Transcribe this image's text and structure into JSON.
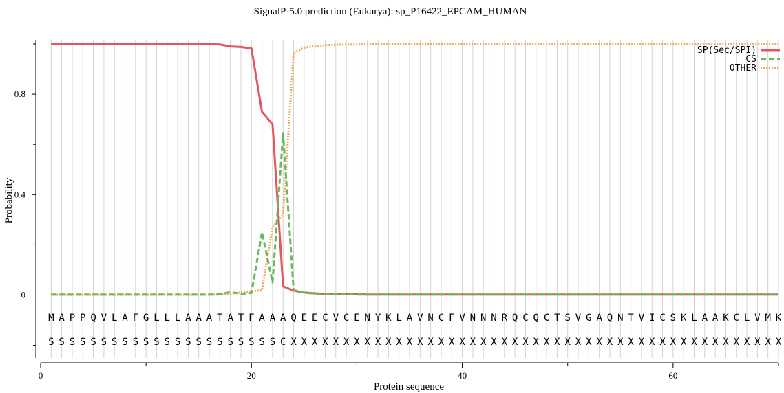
{
  "chart_data": {
    "type": "line",
    "title": "SignalP-5.0 prediction (Eukarya):  sp_P16422_EPCAM_HUMAN",
    "xlabel": "Protein sequence",
    "ylabel": "Probability",
    "xlim": [
      0,
      70
    ],
    "ylim": [
      -0.25,
      1.0
    ],
    "x_ticks": [
      0,
      20,
      40,
      60
    ],
    "x_minor_ticks": [
      10,
      30,
      50,
      70
    ],
    "y_ticks": [
      0,
      0.4,
      0.8
    ],
    "y_tick_labels": [
      "0",
      "0.4",
      "0.8"
    ],
    "y_minor_ticks": [
      -0.2,
      0.2,
      0.6,
      1.0
    ],
    "grid": "vertical lines at each residue",
    "legend_position": "top-right",
    "sequence": [
      "M",
      "A",
      "P",
      "P",
      "Q",
      "V",
      "L",
      "A",
      "F",
      "G",
      "L",
      "L",
      "L",
      "A",
      "A",
      "A",
      "T",
      "A",
      "T",
      "F",
      "A",
      "A",
      "A",
      "Q",
      "E",
      "E",
      "C",
      "V",
      "C",
      "E",
      "N",
      "Y",
      "K",
      "L",
      "A",
      "V",
      "N",
      "C",
      "F",
      "V",
      "N",
      "N",
      "N",
      "R",
      "Q",
      "C",
      "Q",
      "C",
      "T",
      "S",
      "V",
      "G",
      "A",
      "Q",
      "N",
      "T",
      "V",
      "I",
      "C",
      "S",
      "K",
      "L",
      "A",
      "A",
      "K",
      "C",
      "L",
      "V",
      "M",
      "K"
    ],
    "annotation": [
      "S",
      "S",
      "S",
      "S",
      "S",
      "S",
      "S",
      "S",
      "S",
      "S",
      "S",
      "S",
      "S",
      "S",
      "S",
      "S",
      "S",
      "S",
      "S",
      "S",
      "S",
      "S",
      "C",
      "X",
      "X",
      "X",
      "X",
      "X",
      "X",
      "X",
      "X",
      "X",
      "X",
      "X",
      "X",
      "X",
      "X",
      "X",
      "X",
      "X",
      "X",
      "X",
      "X",
      "X",
      "X",
      "X",
      "X",
      "X",
      "X",
      "X",
      "X",
      "X",
      "X",
      "X",
      "X",
      "X",
      "X",
      "X",
      "X",
      "X",
      "X",
      "X",
      "X",
      "X",
      "X",
      "X",
      "X",
      "X",
      "X",
      "X"
    ],
    "series": [
      {
        "name": "SP(Sec/SPI)",
        "color": "#e0585e",
        "style": "solid",
        "x": [
          1,
          2,
          3,
          4,
          5,
          6,
          7,
          8,
          9,
          10,
          11,
          12,
          13,
          14,
          15,
          16,
          17,
          18,
          19,
          20,
          21,
          22,
          23,
          24,
          25,
          26,
          27,
          28,
          29,
          30,
          31,
          32,
          33,
          34,
          35,
          36,
          37,
          38,
          39,
          40,
          41,
          42,
          43,
          44,
          45,
          46,
          47,
          48,
          49,
          50,
          51,
          52,
          53,
          54,
          55,
          56,
          57,
          58,
          59,
          60,
          61,
          62,
          63,
          64,
          65,
          66,
          67,
          68,
          69,
          70
        ],
        "values": [
          1.0,
          1.0,
          1.0,
          1.0,
          1.0,
          1.0,
          1.0,
          1.0,
          1.0,
          1.0,
          1.0,
          1.0,
          1.0,
          1.0,
          1.0,
          1.0,
          0.998,
          0.99,
          0.988,
          0.982,
          0.73,
          0.68,
          0.035,
          0.018,
          0.01,
          0.007,
          0.005,
          0.004,
          0.003,
          0.003,
          0.002,
          0.002,
          0.002,
          0.002,
          0.002,
          0.002,
          0.002,
          0.002,
          0.002,
          0.002,
          0.002,
          0.002,
          0.002,
          0.002,
          0.002,
          0.002,
          0.002,
          0.002,
          0.002,
          0.002,
          0.002,
          0.002,
          0.002,
          0.002,
          0.002,
          0.002,
          0.002,
          0.002,
          0.002,
          0.002,
          0.002,
          0.002,
          0.002,
          0.002,
          0.002,
          0.002,
          0.002,
          0.002,
          0.002,
          0.002
        ]
      },
      {
        "name": "CS",
        "color": "#6ab85e",
        "style": "dashed",
        "x": [
          1,
          2,
          3,
          4,
          5,
          6,
          7,
          8,
          9,
          10,
          11,
          12,
          13,
          14,
          15,
          16,
          17,
          18,
          19,
          20,
          21,
          22,
          23,
          24,
          25,
          26,
          27,
          28,
          29,
          30,
          31,
          32,
          33,
          34,
          35,
          36,
          37,
          38,
          39,
          40,
          41,
          42,
          43,
          44,
          45,
          46,
          47,
          48,
          49,
          50,
          51,
          52,
          53,
          54,
          55,
          56,
          57,
          58,
          59,
          60,
          61,
          62,
          63,
          64,
          65,
          66,
          67,
          68,
          69,
          70
        ],
        "values": [
          0.002,
          0.002,
          0.002,
          0.002,
          0.002,
          0.002,
          0.002,
          0.002,
          0.002,
          0.002,
          0.002,
          0.002,
          0.002,
          0.002,
          0.002,
          0.002,
          0.003,
          0.012,
          0.005,
          0.008,
          0.25,
          0.05,
          0.645,
          0.02,
          0.01,
          0.006,
          0.004,
          0.003,
          0.003,
          0.002,
          0.002,
          0.002,
          0.002,
          0.002,
          0.002,
          0.002,
          0.002,
          0.002,
          0.002,
          0.002,
          0.002,
          0.002,
          0.002,
          0.002,
          0.002,
          0.002,
          0.002,
          0.002,
          0.002,
          0.002,
          0.002,
          0.002,
          0.002,
          0.002,
          0.002,
          0.002,
          0.002,
          0.002,
          0.002,
          0.002,
          0.002,
          0.002,
          0.002,
          0.002,
          0.002,
          0.002,
          0.002,
          0.002,
          0.002,
          0.002
        ]
      },
      {
        "name": "OTHER",
        "color": "#f2a65a",
        "style": "dotted",
        "x": [
          1,
          2,
          3,
          4,
          5,
          6,
          7,
          8,
          9,
          10,
          11,
          12,
          13,
          14,
          15,
          16,
          17,
          18,
          19,
          20,
          21,
          22,
          23,
          24,
          25,
          26,
          27,
          28,
          29,
          30,
          31,
          32,
          33,
          34,
          35,
          36,
          37,
          38,
          39,
          40,
          41,
          42,
          43,
          44,
          45,
          46,
          47,
          48,
          49,
          50,
          51,
          52,
          53,
          54,
          55,
          56,
          57,
          58,
          59,
          60,
          61,
          62,
          63,
          64,
          65,
          66,
          67,
          68,
          69,
          70
        ],
        "values": [
          0.001,
          0.001,
          0.001,
          0.001,
          0.001,
          0.001,
          0.001,
          0.001,
          0.001,
          0.001,
          0.001,
          0.001,
          0.001,
          0.001,
          0.001,
          0.001,
          0.002,
          0.005,
          0.01,
          0.015,
          0.02,
          0.27,
          0.32,
          0.965,
          0.985,
          0.992,
          0.995,
          0.997,
          0.998,
          0.998,
          0.999,
          0.999,
          0.999,
          0.999,
          0.999,
          0.999,
          0.999,
          0.999,
          0.999,
          0.999,
          0.999,
          0.999,
          0.999,
          0.999,
          0.999,
          0.999,
          0.999,
          0.999,
          0.999,
          0.999,
          0.999,
          0.999,
          0.999,
          0.999,
          0.999,
          0.999,
          0.999,
          0.999,
          0.999,
          0.999,
          0.999,
          0.999,
          0.999,
          0.999,
          0.999,
          0.999,
          0.999,
          0.999,
          0.999,
          0.999
        ]
      }
    ]
  }
}
